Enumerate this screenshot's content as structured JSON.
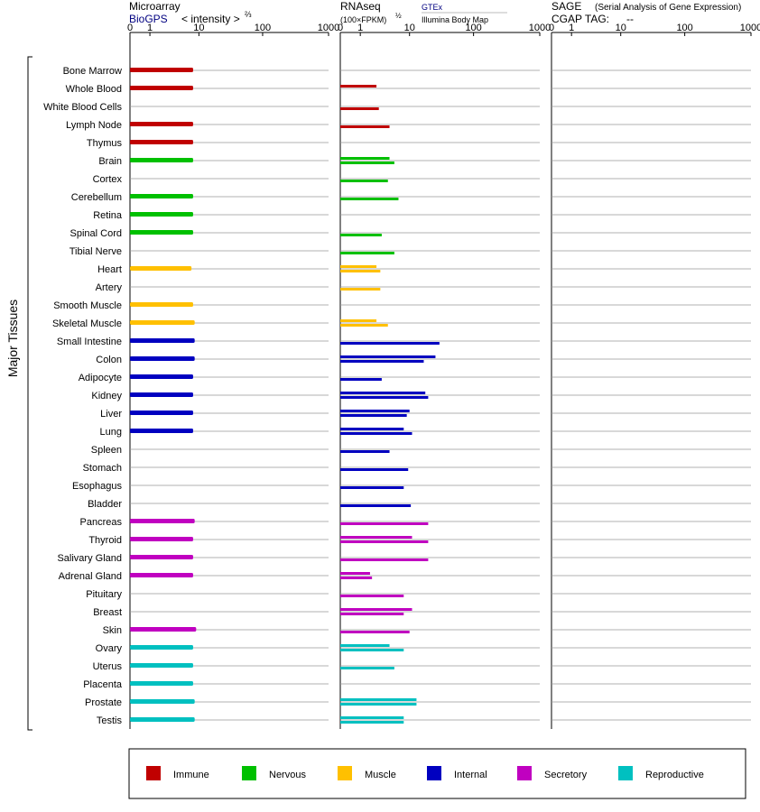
{
  "header": {
    "microarray": {
      "title": "Microarray",
      "source": "BioGPS",
      "unit": "< intensity >",
      "unit_exp": "⅔"
    },
    "rnaseq": {
      "title": "RNAseq",
      "unit": "(100×FPKM)",
      "unit_exp": "½",
      "source1": "GTEx",
      "source2": "Illumina Body Map"
    },
    "sage": {
      "title": "SAGE",
      "subtitle": "(Serial Analysis of Gene Expression)",
      "tag_label": "CGAP TAG:",
      "tag_value": "--"
    }
  },
  "y_axis_title": "Major Tissues",
  "axis_ticks": [
    "0",
    "1",
    "10",
    "100",
    "1000"
  ],
  "tissues": [
    "Bone Marrow",
    "Whole Blood",
    "White Blood Cells",
    "Lymph Node",
    "Thymus",
    "Brain",
    "Cortex",
    "Cerebellum",
    "Retina",
    "Spinal Cord",
    "Tibial Nerve",
    "Heart",
    "Artery",
    "Smooth Muscle",
    "Skeletal Muscle",
    "Small Intestine",
    "Colon",
    "Adipocyte",
    "Kidney",
    "Liver",
    "Lung",
    "Spleen",
    "Stomach",
    "Esophagus",
    "Bladder",
    "Pancreas",
    "Thyroid",
    "Salivary Gland",
    "Adrenal Gland",
    "Pituitary",
    "Breast",
    "Skin",
    "Ovary",
    "Uterus",
    "Placenta",
    "Prostate",
    "Testis"
  ],
  "categories": [
    {
      "name": "Immune",
      "color": "#c00000"
    },
    {
      "name": "Nervous",
      "color": "#00c000"
    },
    {
      "name": "Muscle",
      "color": "#ffc000"
    },
    {
      "name": "Internal",
      "color": "#0000c0"
    },
    {
      "name": "Secretory",
      "color": "#c000c0"
    },
    {
      "name": "Reproductive",
      "color": "#00c0c0"
    }
  ],
  "tissue_category": [
    0,
    0,
    0,
    0,
    0,
    1,
    1,
    1,
    1,
    1,
    1,
    2,
    2,
    2,
    2,
    3,
    3,
    3,
    3,
    3,
    3,
    3,
    3,
    3,
    3,
    4,
    4,
    4,
    4,
    4,
    4,
    4,
    5,
    5,
    5,
    5,
    5
  ],
  "chart_data": {
    "type": "bar",
    "orientation": "horizontal",
    "scale": "log1p",
    "xlim": [
      0,
      1000
    ],
    "categories": [
      "Bone Marrow",
      "Whole Blood",
      "White Blood Cells",
      "Lymph Node",
      "Thymus",
      "Brain",
      "Cortex",
      "Cerebellum",
      "Retina",
      "Spinal Cord",
      "Tibial Nerve",
      "Heart",
      "Artery",
      "Smooth Muscle",
      "Skeletal Muscle",
      "Small Intestine",
      "Colon",
      "Adipocyte",
      "Kidney",
      "Liver",
      "Lung",
      "Spleen",
      "Stomach",
      "Esophagus",
      "Bladder",
      "Pancreas",
      "Thyroid",
      "Salivary Gland",
      "Adrenal Gland",
      "Pituitary",
      "Breast",
      "Skin",
      "Ovary",
      "Uterus",
      "Placenta",
      "Prostate",
      "Testis"
    ],
    "panels": [
      {
        "name": "Microarray",
        "series": [
          {
            "name": "BioGPS",
            "values": [
              8,
              8,
              null,
              8,
              8,
              8,
              null,
              8,
              8,
              8,
              null,
              7.5,
              null,
              8,
              8.5,
              8.5,
              8.5,
              8,
              8,
              8,
              8,
              null,
              null,
              null,
              null,
              8.5,
              8,
              8,
              8,
              null,
              null,
              9,
              8,
              8,
              8,
              8.5,
              8.5
            ]
          }
        ]
      },
      {
        "name": "RNAseq",
        "series": [
          {
            "name": "GTEx",
            "values": [
              null,
              2.5,
              null,
              null,
              null,
              4.5,
              null,
              null,
              null,
              null,
              null,
              2.5,
              null,
              null,
              2.5,
              null,
              26,
              null,
              18,
              10,
              8,
              null,
              null,
              null,
              null,
              null,
              11,
              null,
              1.8,
              null,
              11,
              null,
              4.5,
              null,
              null,
              13,
              8
            ]
          },
          {
            "name": "Illumina Body Map",
            "values": [
              null,
              null,
              2.8,
              4.5,
              null,
              5.5,
              4.2,
              6.5,
              null,
              3.2,
              5.5,
              3,
              3,
              null,
              4.2,
              30,
              17,
              3.2,
              20,
              9,
              11,
              4.5,
              9.5,
              8,
              10.5,
              20,
              20,
              20,
              2.0,
              8,
              8,
              10,
              8,
              5.5,
              null,
              13,
              8
            ]
          }
        ]
      },
      {
        "name": "SAGE",
        "series": []
      }
    ]
  },
  "legend": [
    {
      "name": "Immune",
      "color": "#c00000"
    },
    {
      "name": "Nervous",
      "color": "#00c000"
    },
    {
      "name": "Muscle",
      "color": "#ffc000"
    },
    {
      "name": "Internal",
      "color": "#0000c0"
    },
    {
      "name": "Secretory",
      "color": "#c000c0"
    },
    {
      "name": "Reproductive",
      "color": "#00c0c0"
    }
  ]
}
